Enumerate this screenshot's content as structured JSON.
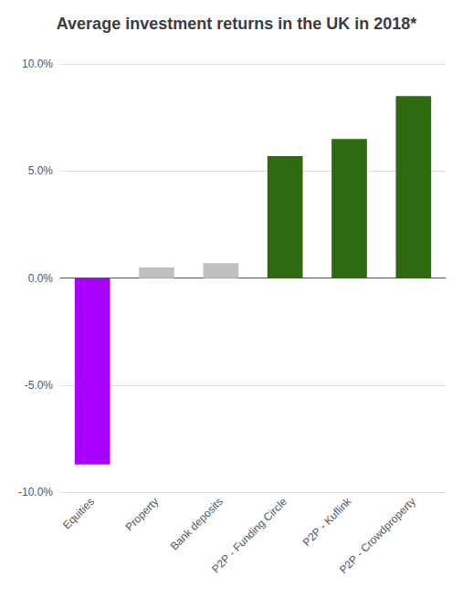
{
  "chart_data": {
    "type": "bar",
    "title": "Average investment returns in the UK in 2018*",
    "categories": [
      "Equities",
      "Property",
      "Bank deposits",
      "P2P - Funding Circle",
      "P2P - Kuflink",
      "P2P - Crowdproperty"
    ],
    "values": [
      -0.087,
      0.005,
      0.007,
      0.057,
      0.065,
      0.085
    ],
    "colors": [
      "#aa00ff",
      "#c0c0c0",
      "#c0c0c0",
      "#2d6a10",
      "#2d6a10",
      "#2d6a10"
    ],
    "ylim": [
      -0.1,
      0.1
    ],
    "yticks": [
      {
        "value": -0.1,
        "label": "-10.0%"
      },
      {
        "value": -0.05,
        "label": "-5.0%"
      },
      {
        "value": 0.0,
        "label": "0.0%"
      },
      {
        "value": 0.05,
        "label": "5.0%"
      },
      {
        "value": 0.1,
        "label": "10.0%"
      }
    ],
    "grid": true
  }
}
